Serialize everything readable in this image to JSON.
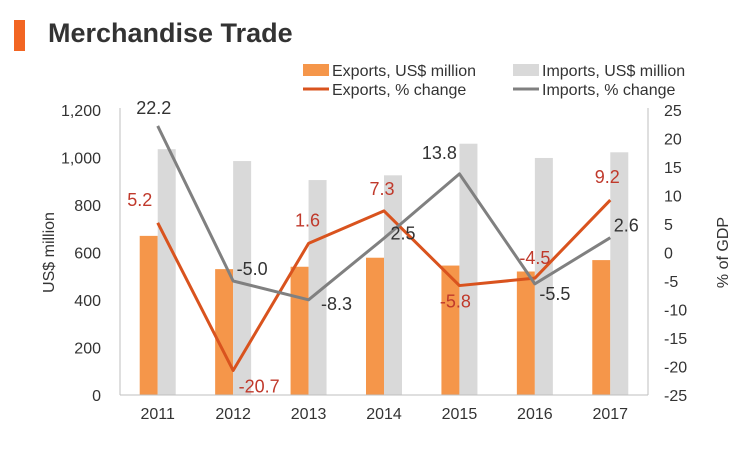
{
  "chart_data": {
    "type": "bar",
    "title": "Merchandise Trade",
    "categories": [
      "2011",
      "2012",
      "2013",
      "2014",
      "2015",
      "2016",
      "2017"
    ],
    "ylabel": "US$ million",
    "y2label": "% of GDP",
    "ylim": [
      0,
      1200
    ],
    "y2lim": [
      -25,
      25
    ],
    "yticks": [
      "0",
      "200",
      "400",
      "600",
      "800",
      "1,000",
      "1,200"
    ],
    "y2ticks": [
      "-25",
      "-20",
      "-15",
      "-10",
      "-5",
      "0",
      "5",
      "10",
      "15",
      "20",
      "25"
    ],
    "grid": false,
    "legend_position": "top",
    "series": [
      {
        "name": "Exports, US$ million",
        "type": "bar",
        "axis": "left",
        "color": "#F5964A",
        "values": [
          670,
          530,
          540,
          578,
          545,
          520,
          568
        ]
      },
      {
        "name": "Imports, US$ million",
        "type": "bar",
        "axis": "left",
        "color": "#D9D9D9",
        "values": [
          1035,
          985,
          905,
          925,
          1058,
          998,
          1022
        ]
      },
      {
        "name": "Exports, % change",
        "type": "line",
        "axis": "right",
        "color": "#D9531E",
        "values": [
          5.2,
          -20.7,
          1.6,
          7.3,
          -5.8,
          -4.5,
          9.2
        ],
        "labels": [
          "5.2",
          "-20.7",
          "1.6",
          "7.3",
          "-5.8",
          "-4.5",
          "9.2"
        ]
      },
      {
        "name": "Imports, % change",
        "type": "line",
        "axis": "right",
        "color": "#808080",
        "values": [
          22.2,
          -5.0,
          -8.3,
          2.5,
          13.8,
          -5.5,
          2.6
        ],
        "labels": [
          "22.2",
          "-5.0",
          "-8.3",
          "2.5",
          "13.8",
          "-5.5",
          "2.6"
        ]
      }
    ],
    "colors": {
      "title_bar": "#F26522",
      "title_text": "#333333",
      "axis": "#BFBFBF",
      "text": "#333333",
      "export_label": "#C0392B",
      "import_label": "#333333"
    }
  }
}
